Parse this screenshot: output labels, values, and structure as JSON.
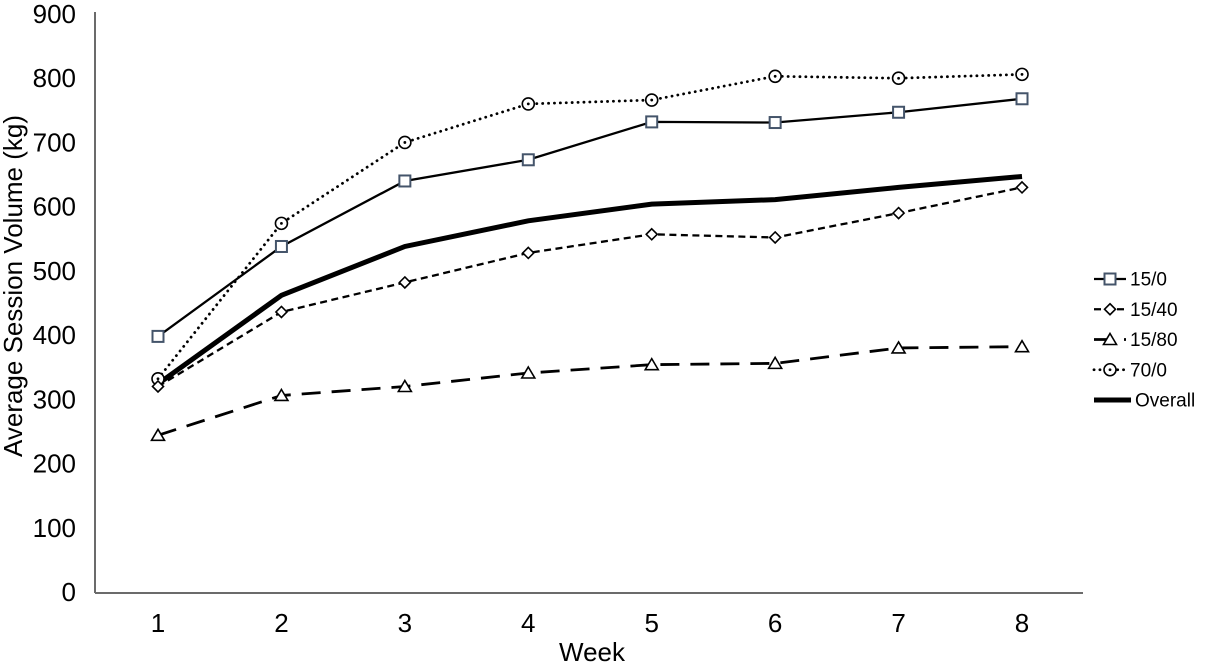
{
  "chart_data": {
    "type": "line",
    "title": "",
    "xlabel": "Week",
    "ylabel": "Average Session Volume (kg)",
    "categories": [
      1,
      2,
      3,
      4,
      5,
      6,
      7,
      8
    ],
    "ylim": [
      0,
      900
    ],
    "yticks": [
      0,
      100,
      200,
      300,
      400,
      500,
      600,
      700,
      800,
      900
    ],
    "grid": false,
    "legend_position": "right",
    "series": [
      {
        "name": "15/0",
        "values": [
          398,
          538,
          640,
          673,
          732,
          731,
          747,
          768
        ],
        "line_style": "solid",
        "marker": "square",
        "marker_color": "#44546A",
        "line_color": "#000000"
      },
      {
        "name": "15/40",
        "values": [
          320,
          436,
          482,
          528,
          557,
          552,
          590,
          630
        ],
        "line_style": "dash",
        "marker": "diamond",
        "marker_color": "#000000",
        "line_color": "#000000"
      },
      {
        "name": "15/80",
        "values": [
          244,
          306,
          320,
          341,
          354,
          356,
          380,
          382
        ],
        "line_style": "longdash",
        "marker": "triangle",
        "marker_color": "#000000",
        "line_color": "#000000"
      },
      {
        "name": "70/0",
        "values": [
          332,
          574,
          700,
          760,
          766,
          803,
          800,
          806
        ],
        "line_style": "dotted",
        "marker": "circle-dot",
        "marker_color": "#000000",
        "line_color": "#000000"
      },
      {
        "name": "Overall",
        "values": [
          324,
          462,
          538,
          578,
          604,
          611,
          630,
          647
        ],
        "line_style": "thick",
        "marker": "none",
        "marker_color": "#000000",
        "line_color": "#000000"
      }
    ],
    "colors": {
      "axis": "#6B6B6B",
      "text": "#000000",
      "background": "#FFFFFF",
      "square_marker_accent": "#44546A"
    }
  }
}
